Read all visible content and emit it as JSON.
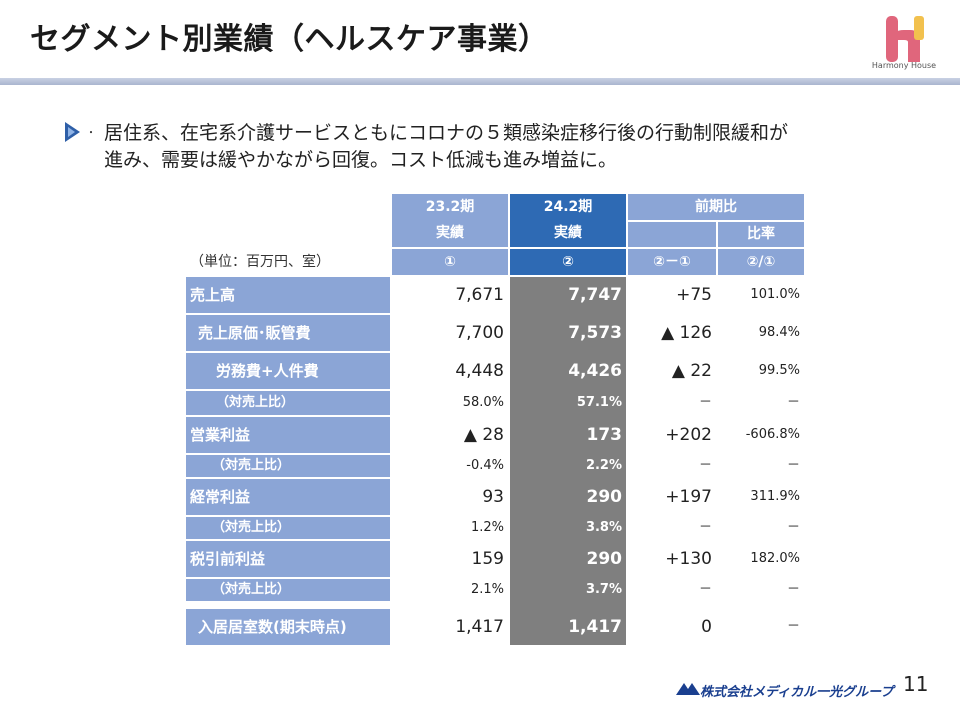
{
  "title": "セグメント別業績（ヘルスケア事業）",
  "brand": {
    "name": "Harmony House",
    "accent_pink": "#e0667c",
    "accent_yellow": "#f2c14e"
  },
  "bullet_icon": "chevron-right-icon",
  "lead_line1": "居住系、在宅系介護サービスともにコロナの５類感染症移行後の行動制限緩和が",
  "lead_line2": "進み、需要は緩やかながら回復。コスト低減も進み増益に。",
  "unit": "（単位：百万円、室）",
  "header": {
    "prev_period": "23.2期",
    "prev_sub": "実績",
    "prev_mark": "①",
    "cur_period": "24.2期",
    "cur_sub": "実績",
    "cur_mark": "②",
    "yoy": "前期比",
    "ratio": "比率",
    "diff_mark": "②－①",
    "ratio_mark": "②/①"
  },
  "rows": [
    {
      "label": "売上高",
      "prev": "7,671",
      "cur": "7,747",
      "diff": "+75",
      "ratio": "101.0%"
    },
    {
      "label": "売上原価･販管費",
      "prev": "7,700",
      "cur": "7,573",
      "diff": "▲ 126",
      "ratio": "98.4%"
    },
    {
      "label": "労務費+人件費",
      "prev": "4,448",
      "cur": "4,426",
      "diff": "▲ 22",
      "ratio": "99.5%"
    },
    {
      "label": "（対売上比）",
      "prev": "58.0%",
      "cur": "57.1%",
      "diff": "－",
      "ratio": "－"
    },
    {
      "label": "営業利益",
      "prev": "▲ 28",
      "cur": "173",
      "diff": "+202",
      "ratio": "-606.8%"
    },
    {
      "label": "（対売上比）",
      "prev": "-0.4%",
      "cur": "2.2%",
      "diff": "－",
      "ratio": "－"
    },
    {
      "label": "経常利益",
      "prev": "93",
      "cur": "290",
      "diff": "+197",
      "ratio": "311.9%"
    },
    {
      "label": "（対売上比）",
      "prev": "1.2%",
      "cur": "3.8%",
      "diff": "－",
      "ratio": "－"
    },
    {
      "label": "税引前利益",
      "prev": "159",
      "cur": "290",
      "diff": "+130",
      "ratio": "182.0%"
    },
    {
      "label": "（対売上比）",
      "prev": "2.1%",
      "cur": "3.7%",
      "diff": "－",
      "ratio": "－"
    },
    {
      "label": "入居居室数(期末時点)",
      "prev": "1,417",
      "cur": "1,417",
      "diff": "0",
      "ratio": "－"
    }
  ],
  "footer": {
    "company": "株式会社メディカル一光グループ",
    "page": "11"
  }
}
